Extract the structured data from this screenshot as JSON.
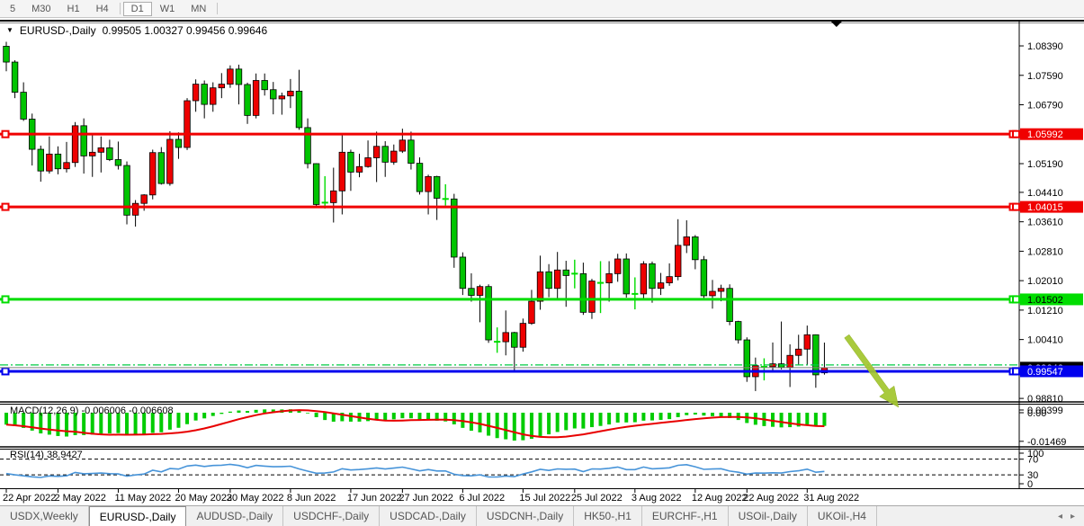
{
  "window": {
    "toolbar": {
      "buttons": [
        "5",
        "M30",
        "H1",
        "H4",
        "D1",
        "W1",
        "MN"
      ],
      "active": "D1"
    }
  },
  "chart": {
    "title": {
      "symbol": "EURUSD-,Daily",
      "ohlc_text": "0.99505 1.00327 0.99456 0.99646",
      "open": "0.99505",
      "high": "1.00327",
      "low": "0.99456",
      "close": "0.99646"
    }
  },
  "chart_data": {
    "type": "candlestick",
    "symbol": "EURUSD-",
    "timeframe": "Daily",
    "colors": {
      "up_body": "#ee0000",
      "down_body": "#00c400",
      "doji": "#00dc00",
      "wick": "#000000",
      "resistance_line": "#f00000",
      "support_line": "#00dd00",
      "target_line": "#0000ee",
      "ask_line": "#00cc44",
      "bid_line": "#808080",
      "macd_histogram": "#00cc00",
      "macd_signal": "#e80000",
      "rsi_line": "#4794d9",
      "arrow_annotation": "#a2c52d"
    },
    "price_axis": {
      "range": {
        "top": 1.09075,
        "bottom": 0.98715
      },
      "ticks": [
        {
          "label": "1.08390",
          "price": 1.0839
        },
        {
          "label": "1.07590",
          "price": 1.0759
        },
        {
          "label": "1.06790",
          "price": 1.0679
        },
        {
          "label": "1.05190",
          "price": 1.0519
        },
        {
          "label": "1.04410",
          "price": 1.0441
        },
        {
          "label": "1.03610",
          "price": 1.0361
        },
        {
          "label": "1.02810",
          "price": 1.0281
        },
        {
          "label": "1.02010",
          "price": 1.0201
        },
        {
          "label": "1.01210",
          "price": 1.0121
        },
        {
          "label": "1.00410",
          "price": 1.0041
        },
        {
          "label": "0.98810",
          "price": 0.9881
        }
      ]
    },
    "hlines": [
      {
        "price": 1.05992,
        "label": "1.05992",
        "color": "#f00000",
        "width": 3,
        "text_color": "#ffffff"
      },
      {
        "price": 1.04015,
        "label": "1.04015",
        "color": "#f00000",
        "width": 3,
        "text_color": "#ffffff"
      },
      {
        "price": 1.01502,
        "label": "1.01502",
        "color": "#00dd00",
        "width": 3,
        "text_color": "#000000"
      },
      {
        "price": 0.99547,
        "label": "0.99547",
        "color": "#0000ee",
        "width": 3,
        "text_color": "#ffffff"
      }
    ],
    "bid_line": {
      "price": 0.99646,
      "label": "0.99646",
      "box_color": "#000000",
      "text_color": "#ffffff"
    },
    "ask_line": {
      "price": 0.9972,
      "style": "dashdot"
    },
    "annotations": [
      {
        "type": "arrow",
        "from_index": 97.6,
        "from_price": 1.005,
        "to_index": 103.6,
        "to_price": 0.9857
      }
    ],
    "shift_marker_index": 96.4,
    "date_axis": {
      "ticks": [
        {
          "index": 0,
          "label": "22 Apr 2022"
        },
        {
          "index": 6,
          "label": "2 May 2022"
        },
        {
          "index": 13,
          "label": "11 May 2022"
        },
        {
          "index": 20,
          "label": "20 May 2022"
        },
        {
          "index": 26,
          "label": "30 May 2022"
        },
        {
          "index": 33,
          "label": "8 Jun 2022"
        },
        {
          "index": 40,
          "label": "17 Jun 2022"
        },
        {
          "index": 46,
          "label": "27 Jun 2022"
        },
        {
          "index": 53,
          "label": "6 Jul 2022"
        },
        {
          "index": 60,
          "label": "15 Jul 2022"
        },
        {
          "index": 66,
          "label": "25 Jul 2022"
        },
        {
          "index": 73,
          "label": "3 Aug 2022"
        },
        {
          "index": 80,
          "label": "12 Aug 2022"
        },
        {
          "index": 86,
          "label": "22 Aug 2022"
        },
        {
          "index": 93,
          "label": "31 Aug 2022"
        }
      ]
    },
    "candles_format": [
      "date",
      "open",
      "high",
      "low",
      "close"
    ],
    "candles": [
      [
        "04-22",
        1.0838,
        1.085,
        1.077,
        1.0795
      ],
      [
        "04-25",
        1.0795,
        1.08,
        1.0697,
        1.0713
      ],
      [
        "04-26",
        1.0713,
        1.074,
        1.0635,
        1.064
      ],
      [
        "04-27",
        1.064,
        1.0655,
        1.0514,
        1.0558
      ],
      [
        "04-28",
        1.0558,
        1.0568,
        1.047,
        1.0499
      ],
      [
        "04-29",
        1.0499,
        1.0593,
        1.0492,
        1.0545
      ],
      [
        "05-02",
        1.0545,
        1.0566,
        1.049,
        1.0505
      ],
      [
        "05-03",
        1.0505,
        1.0578,
        1.0495,
        1.0522
      ],
      [
        "05-04",
        1.0522,
        1.0632,
        1.051,
        1.0622
      ],
      [
        "05-05",
        1.0622,
        1.0642,
        1.0492,
        1.054
      ],
      [
        "05-06",
        1.054,
        1.0599,
        1.0483,
        1.055
      ],
      [
        "05-09",
        1.055,
        1.0593,
        1.0495,
        1.0562
      ],
      [
        "05-10",
        1.0562,
        1.0584,
        1.0526,
        1.053
      ],
      [
        "05-11",
        1.053,
        1.0579,
        1.0503,
        1.0514
      ],
      [
        "05-12",
        1.0514,
        1.0525,
        1.0354,
        1.0379
      ],
      [
        "05-13",
        1.0379,
        1.042,
        1.0348,
        1.0411
      ],
      [
        "05-16",
        1.0411,
        1.0436,
        1.0391,
        1.0434
      ],
      [
        "05-17",
        1.0434,
        1.0557,
        1.0422,
        1.0549
      ],
      [
        "05-18",
        1.0549,
        1.0564,
        1.0462,
        1.0465
      ],
      [
        "05-19",
        1.0465,
        1.0607,
        1.0459,
        1.0585
      ],
      [
        "05-20",
        1.0585,
        1.0604,
        1.0532,
        1.0563
      ],
      [
        "05-23",
        1.0563,
        1.0697,
        1.0556,
        1.069
      ],
      [
        "05-24",
        1.069,
        1.0748,
        1.066,
        1.0735
      ],
      [
        "05-25",
        1.0735,
        1.0745,
        1.0642,
        1.068
      ],
      [
        "05-26",
        1.068,
        1.074,
        1.066,
        1.0725
      ],
      [
        "05-27",
        1.0725,
        1.0765,
        1.0697,
        1.0735
      ],
      [
        "05-30",
        1.0735,
        1.0786,
        1.0725,
        1.0776
      ],
      [
        "05-31",
        1.0776,
        1.0788,
        1.068,
        1.0734
      ],
      [
        "06-01",
        1.0734,
        1.0739,
        1.0627,
        1.065
      ],
      [
        "06-02",
        1.065,
        1.0764,
        1.0642,
        1.0745
      ],
      [
        "06-03",
        1.0745,
        1.0764,
        1.0704,
        1.072
      ],
      [
        "06-06",
        1.072,
        1.0741,
        1.0653,
        1.0695
      ],
      [
        "06-07",
        1.0695,
        1.0712,
        1.0652,
        1.0703
      ],
      [
        "06-08",
        1.0703,
        1.0749,
        1.067,
        1.0716
      ],
      [
        "06-09",
        1.0716,
        1.0774,
        1.0611,
        1.0617
      ],
      [
        "06-10",
        1.0617,
        1.0642,
        1.0506,
        1.0519
      ],
      [
        "06-13",
        1.0519,
        1.052,
        1.0399,
        1.0408
      ],
      [
        "06-14",
        1.0408,
        1.0485,
        1.0397,
        1.0413
      ],
      [
        "06-15",
        1.0413,
        1.0508,
        1.0359,
        1.0445
      ],
      [
        "06-16",
        1.0445,
        1.0601,
        1.0381,
        1.055
      ],
      [
        "06-17",
        1.055,
        1.0557,
        1.0445,
        1.0496
      ],
      [
        "06-20",
        1.0496,
        1.0546,
        1.0482,
        1.0511
      ],
      [
        "06-21",
        1.0511,
        1.0582,
        1.0508,
        1.0535
      ],
      [
        "06-22",
        1.0535,
        1.0606,
        1.0469,
        1.0566
      ],
      [
        "06-23",
        1.0566,
        1.058,
        1.0483,
        1.0523
      ],
      [
        "06-24",
        1.0523,
        1.0571,
        1.0516,
        1.0553
      ],
      [
        "06-27",
        1.0553,
        1.0614,
        1.0548,
        1.0583
      ],
      [
        "06-28",
        1.0583,
        1.0606,
        1.0503,
        1.052
      ],
      [
        "06-29",
        1.052,
        1.0536,
        1.0435,
        1.0443
      ],
      [
        "06-30",
        1.0443,
        1.0489,
        1.0381,
        1.0484
      ],
      [
        "07-01",
        1.0484,
        1.0486,
        1.0366,
        1.0425
      ],
      [
        "07-04",
        1.0425,
        1.0463,
        1.0405,
        1.0423
      ],
      [
        "07-05",
        1.0423,
        1.0437,
        1.0236,
        1.0265
      ],
      [
        "07-06",
        1.0265,
        1.0278,
        1.0162,
        1.018
      ],
      [
        "07-07",
        1.018,
        1.0221,
        1.0144,
        1.0161
      ],
      [
        "07-08",
        1.0161,
        1.019,
        1.0088,
        1.0185
      ],
      [
        "07-11",
        1.0185,
        1.0191,
        1.0032,
        1.004
      ],
      [
        "07-12",
        1.004,
        1.0074,
        1.0005,
        1.0035
      ],
      [
        "07-13",
        1.0035,
        1.012,
        0.9998,
        1.006
      ],
      [
        "07-14",
        1.006,
        1.0062,
        0.9952,
        1.002
      ],
      [
        "07-15",
        1.002,
        1.0098,
        1.0008,
        1.0085
      ],
      [
        "07-18",
        1.0085,
        1.0176,
        1.0081,
        1.0145
      ],
      [
        "07-19",
        1.0145,
        1.0269,
        1.0122,
        1.0225
      ],
      [
        "07-20",
        1.0225,
        1.0246,
        1.0156,
        1.018
      ],
      [
        "07-21",
        1.018,
        1.0279,
        1.0152,
        1.023
      ],
      [
        "07-22",
        1.023,
        1.0255,
        1.013,
        1.0215
      ],
      [
        "07-25",
        1.0215,
        1.0258,
        1.018,
        1.022
      ],
      [
        "07-26",
        1.022,
        1.025,
        1.0108,
        1.0115
      ],
      [
        "07-27",
        1.0115,
        1.0206,
        1.0097,
        1.02
      ],
      [
        "07-28",
        1.02,
        1.0254,
        1.0113,
        1.0195
      ],
      [
        "07-29",
        1.0195,
        1.0254,
        1.0144,
        1.022
      ],
      [
        "08-01",
        1.022,
        1.0274,
        1.0198,
        1.026
      ],
      [
        "08-02",
        1.026,
        1.0275,
        1.0155,
        1.0165
      ],
      [
        "08-03",
        1.0165,
        1.021,
        1.0123,
        1.0165
      ],
      [
        "08-04",
        1.0165,
        1.0254,
        1.0151,
        1.0247
      ],
      [
        "08-05",
        1.0247,
        1.0253,
        1.0141,
        1.018
      ],
      [
        "08-08",
        1.018,
        1.0222,
        1.0162,
        1.0195
      ],
      [
        "08-09",
        1.0195,
        1.0248,
        1.0187,
        1.0212
      ],
      [
        "08-10",
        1.0212,
        1.0368,
        1.0202,
        1.0297
      ],
      [
        "08-11",
        1.0297,
        1.0365,
        1.0276,
        1.032
      ],
      [
        "08-12",
        1.032,
        1.0325,
        1.0232,
        1.0258
      ],
      [
        "08-15",
        1.0258,
        1.0268,
        1.0154,
        1.016
      ],
      [
        "08-16",
        1.016,
        1.0203,
        1.0125,
        1.0172
      ],
      [
        "08-17",
        1.0172,
        1.019,
        1.0145,
        1.018
      ],
      [
        "08-18",
        1.018,
        1.0191,
        1.008,
        1.009
      ],
      [
        "08-19",
        1.009,
        1.0092,
        1.003,
        1.004
      ],
      [
        "08-22",
        1.004,
        1.0047,
        0.9926,
        0.994
      ],
      [
        "08-23",
        0.994,
        0.9992,
        0.9901,
        0.997
      ],
      [
        "08-24",
        0.997,
        0.999,
        0.993,
        0.9967
      ],
      [
        "08-25",
        0.9967,
        1.0033,
        0.9956,
        0.9975
      ],
      [
        "08-26",
        0.9975,
        1.009,
        0.996,
        0.9965
      ],
      [
        "08-29",
        0.9965,
        1.0028,
        0.9912,
        0.9998
      ],
      [
        "08-30",
        0.9998,
        1.0054,
        0.9972,
        1.0015
      ],
      [
        "08-31",
        1.0015,
        1.0079,
        0.9972,
        1.0054
      ],
      [
        "09-01",
        1.0054,
        1.0055,
        0.991,
        0.9945
      ],
      [
        "09-02",
        0.99505,
        1.00327,
        0.99456,
        0.99646
      ]
    ],
    "indicators": {
      "macd": {
        "label_text": "MACD(12,26,9) -0.006006 -0.006608",
        "params": [
          12,
          26,
          9
        ],
        "value": "-0.006006",
        "signal_value": "-0.006608",
        "axis_ticks": [
          {
            "label": "0.00399",
            "value": 0.00399
          },
          {
            "label": "0.00",
            "value": 0.0
          },
          {
            "label": "-0.01469",
            "value": -0.01469
          }
        ],
        "seeds": {
          "ema12": 1.0865,
          "ema26": 1.0925
        }
      },
      "rsi": {
        "label_text": "RSI(14) 38.9427",
        "period": 14,
        "value": "38.9427",
        "levels": [
          70,
          30
        ],
        "axis_ticks": [
          {
            "label": "100",
            "rsi": 100
          },
          {
            "label": "70",
            "rsi": 70
          },
          {
            "label": "30",
            "rsi": 30
          },
          {
            "label": "0",
            "rsi": 0
          }
        ],
        "seeds": {
          "avg_gain": 0.002,
          "avg_loss": 0.004
        }
      }
    }
  },
  "tabs": {
    "items": [
      "USDX,Weekly",
      "EURUSD-,Daily",
      "AUDUSD-,Daily",
      "USDCHF-,Daily",
      "USDCAD-,Daily",
      "USDCNH-,Daily",
      "HK50-,H1",
      "EURCHF-,H1",
      "USOil-,Daily",
      "UKOil-,H4"
    ],
    "active_index": 1,
    "nav_left": "◂",
    "nav_right": "▸"
  }
}
